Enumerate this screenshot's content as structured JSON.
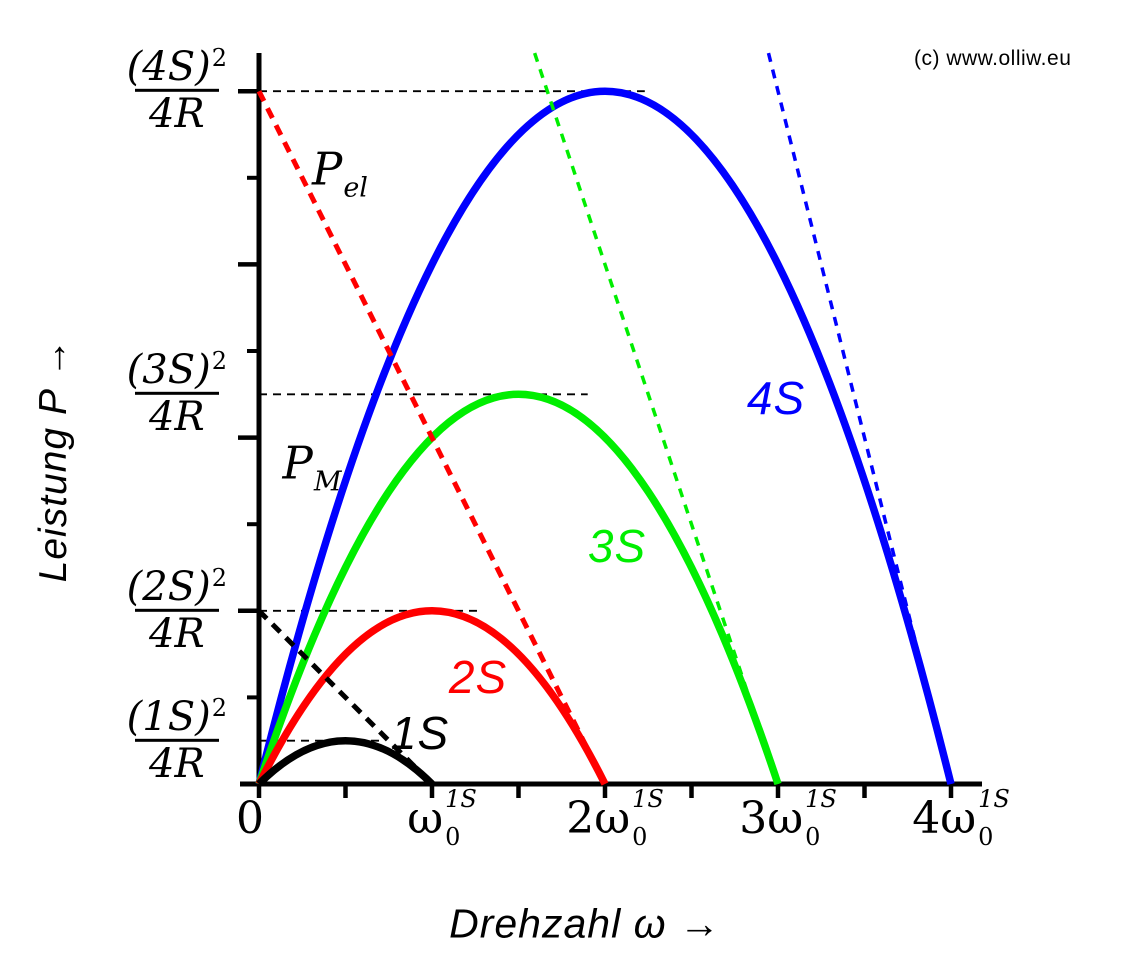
{
  "copyright": "(c) www.olliw.eu",
  "chart_data": {
    "type": "line",
    "title": "",
    "xlabel": "Drehzahl ω →",
    "ylabel": "Leistung P →",
    "x_unit_note": "x axis in multiples of the no-load speed ω0 at voltage 1S",
    "y_unit_note": "y axis in multiples of S²/4R",
    "xlim": [
      0,
      4.18
    ],
    "ylim": [
      0,
      16.88
    ],
    "grid": false,
    "x_ticks": [
      0,
      0.5,
      1,
      1.5,
      2,
      2.5,
      3,
      3.5,
      4
    ],
    "x_tick_labels": [
      {
        "value": 0,
        "base": "0",
        "sup": "",
        "sub": ""
      },
      {
        "value": 1,
        "base": "ω",
        "sup": "1S",
        "sub": "0"
      },
      {
        "value": 2,
        "base": "2ω",
        "sup": "1S",
        "sub": "0"
      },
      {
        "value": 3,
        "base": "3ω",
        "sup": "1S",
        "sub": "0"
      },
      {
        "value": 4,
        "base": "4ω",
        "sup": "1S",
        "sub": "0"
      }
    ],
    "y_ticks_minor": [
      2,
      6,
      10,
      14
    ],
    "y_ticks_major": [
      4,
      8,
      12,
      16
    ],
    "y_levels": [
      {
        "value": 16,
        "num": "(4S)",
        "sup": "2",
        "den": "4R",
        "dash_to_x": 2.23
      },
      {
        "value": 9,
        "num": "(3S)",
        "sup": "2",
        "den": "4R",
        "dash_to_x": 1.9
      },
      {
        "value": 4,
        "num": "(2S)",
        "sup": "2",
        "den": "4R",
        "dash_to_x": 1.26
      },
      {
        "value": 1,
        "num": "(1S)",
        "sup": "2",
        "den": "4R",
        "dash_to_x": 0.7
      }
    ],
    "series": [
      {
        "name": "1S",
        "color": "#000000",
        "U": 1,
        "curve": "P_M = 4x(1-x)",
        "peak": {
          "x": 0.5,
          "P": 1
        },
        "zeros": [
          0,
          1
        ]
      },
      {
        "name": "2S",
        "color": "#ff0000",
        "U": 2,
        "curve": "P_M = 4x(2-x)",
        "peak": {
          "x": 1.0,
          "P": 4
        },
        "zeros": [
          0,
          2
        ]
      },
      {
        "name": "3S",
        "color": "#00ee00",
        "U": 3,
        "curve": "P_M = 4x(3-x)",
        "peak": {
          "x": 1.5,
          "P": 9
        },
        "zeros": [
          0,
          3
        ]
      },
      {
        "name": "4S",
        "color": "#0000ff",
        "U": 4,
        "curve": "P_M = 4x(4-x)",
        "peak": {
          "x": 2.0,
          "P": 16
        },
        "zeros": [
          0,
          4
        ]
      }
    ],
    "pel_lines": [
      {
        "series": "1S",
        "color": "#000000",
        "U": 1,
        "P_at_x0": 4,
        "zero_x": 1,
        "thick": true
      },
      {
        "series": "2S",
        "color": "#ff0000",
        "U": 2,
        "P_at_x0": 16,
        "zero_x": 2,
        "thick": true
      },
      {
        "series": "3S",
        "color": "#00ee00",
        "U": 3,
        "P_at_x0": 36,
        "zero_x": 3,
        "thick": false
      },
      {
        "series": "4S",
        "color": "#0000ff",
        "U": 4,
        "P_at_x0": 64,
        "zero_x": 4,
        "thick": false
      }
    ]
  },
  "annotations": {
    "pel_label": {
      "base": "P",
      "sub": "el"
    },
    "pm_label": {
      "base": "P",
      "sub": "M"
    }
  }
}
